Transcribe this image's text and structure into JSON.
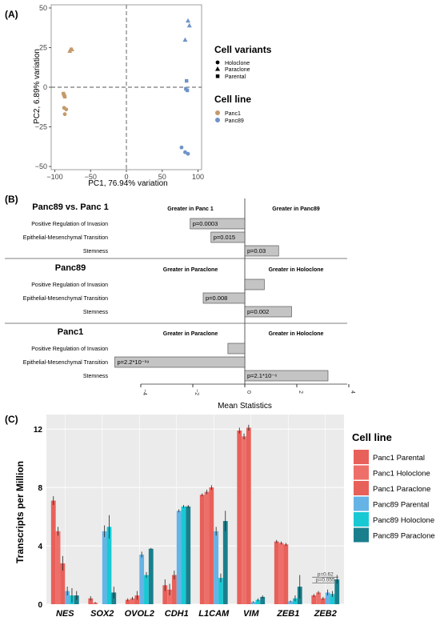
{
  "panel_labels": {
    "a": "(A)",
    "b": "(B)",
    "c": "(C)"
  },
  "colors": {
    "panc1": "#c49a6c",
    "panc89": "#6e94c8",
    "panel_c": {
      "Panc1 Parental": "#e8605a",
      "Panc1 Holoclone": "#ee6f6a",
      "Panc1 Paraclone": "#e8605a",
      "Panc89 Parental": "#66b3e6",
      "Panc89 Holoclone": "#18c9d4",
      "Panc89 Paraclone": "#1a7f8c"
    },
    "bar_grey": "#c4c4c4"
  },
  "chart_data": [
    {
      "type": "scatter",
      "panel": "A",
      "xlabel": "PC1, 76.94% variation",
      "ylabel": "PC2, 6.89% variation",
      "xlim": [
        -105,
        105
      ],
      "ylim": [
        -52,
        52
      ],
      "xticks": [
        -100,
        -50,
        0,
        50,
        100
      ],
      "yticks": [
        -50,
        -25,
        0,
        25,
        50
      ],
      "grid": false,
      "legend_position": "right",
      "legend": {
        "shape_title": "Cell variants",
        "shapes": [
          "Holoclone",
          "Paraclone",
          "Parental"
        ],
        "color_title": "Cell line",
        "colors": [
          "Panc1",
          "Panc89"
        ]
      },
      "points": [
        {
          "x": -78,
          "y": 24,
          "line": "Panc1",
          "variant": "Paraclone"
        },
        {
          "x": -76,
          "y": 24,
          "line": "Panc1",
          "variant": "Paraclone"
        },
        {
          "x": -79,
          "y": 23,
          "line": "Panc1",
          "variant": "Paraclone"
        },
        {
          "x": -88,
          "y": -4,
          "line": "Panc1",
          "variant": "Parental"
        },
        {
          "x": -86,
          "y": -6,
          "line": "Panc1",
          "variant": "Parental"
        },
        {
          "x": -87,
          "y": -5,
          "line": "Panc1",
          "variant": "Parental"
        },
        {
          "x": -87,
          "y": -13,
          "line": "Panc1",
          "variant": "Holoclone"
        },
        {
          "x": -84,
          "y": -14,
          "line": "Panc1",
          "variant": "Holoclone"
        },
        {
          "x": -86,
          "y": -17,
          "line": "Panc1",
          "variant": "Holoclone"
        },
        {
          "x": 86,
          "y": 42,
          "line": "Panc89",
          "variant": "Paraclone"
        },
        {
          "x": 88,
          "y": 39,
          "line": "Panc89",
          "variant": "Paraclone"
        },
        {
          "x": 82,
          "y": 30,
          "line": "Panc89",
          "variant": "Paraclone"
        },
        {
          "x": 84,
          "y": 4,
          "line": "Panc89",
          "variant": "Parental"
        },
        {
          "x": 83,
          "y": -1,
          "line": "Panc89",
          "variant": "Parental"
        },
        {
          "x": 85,
          "y": -2,
          "line": "Panc89",
          "variant": "Parental"
        },
        {
          "x": 77,
          "y": -38,
          "line": "Panc89",
          "variant": "Holoclone"
        },
        {
          "x": 82,
          "y": -41,
          "line": "Panc89",
          "variant": "Holoclone"
        },
        {
          "x": 86,
          "y": -42,
          "line": "Panc89",
          "variant": "Holoclone"
        }
      ]
    },
    {
      "type": "bar",
      "panel": "B",
      "xlabel": "Mean Statistics",
      "xlim": [
        -4,
        4
      ],
      "xticks": [
        -4,
        -2,
        0,
        2,
        4
      ],
      "sections": [
        {
          "title": "Panc89 vs. Panc 1",
          "left_header": "Greater in Panc 1",
          "right_header": "Greater in Panc89",
          "rows": [
            {
              "label": "Positive Regulation of Invasion",
              "value": -2.1,
              "p": "p=0.0003"
            },
            {
              "label": "Epithelial-Mesenchymal Transition",
              "value": -1.3,
              "p": "p=0.015"
            },
            {
              "label": "Stemness",
              "value": 1.3,
              "p": "p=0.03"
            }
          ]
        },
        {
          "title": "Panc89",
          "left_header": "Greater in Paraclone",
          "right_header": "Greater in Holoclone",
          "rows": [
            {
              "label": "Positive Regulation of Invasion",
              "value": 0.75,
              "p": ""
            },
            {
              "label": "Epithelial-Mesenchymal Transition",
              "value": -1.6,
              "p": "p=0.008"
            },
            {
              "label": "Stemness",
              "value": 1.8,
              "p": "p=0.002"
            }
          ]
        },
        {
          "title": "Panc1",
          "left_header": "Greater in Paraclone",
          "right_header": "Greater in Holoclone",
          "rows": [
            {
              "label": "Positive Regulation of Invasion",
              "value": -0.65,
              "p": ""
            },
            {
              "label": "Epithelial-Mesenchymal Transition",
              "value": -5.0,
              "p": "p=2.2*10⁻¹⁹"
            },
            {
              "label": "Stemness",
              "value": 3.2,
              "p": "p=2.1*10⁻⁶"
            }
          ]
        }
      ]
    },
    {
      "type": "bar",
      "panel": "C",
      "ylabel": "Transcripts per Million",
      "ylim": [
        0,
        13
      ],
      "yticks": [
        0,
        4,
        8,
        12
      ],
      "legend_position": "right",
      "legend_title": "Cell line",
      "categories": [
        "NES",
        "SOX2",
        "OVOL2",
        "CDH1",
        "L1CAM",
        "VIM",
        "ZEB1",
        "ZEB2"
      ],
      "series": [
        {
          "name": "Panc1 Parental",
          "values": [
            7.1,
            0.4,
            0.3,
            1.3,
            7.5,
            11.9,
            4.3,
            0.6
          ],
          "errors": [
            0.3,
            0.15,
            0.1,
            0.4,
            0.1,
            0.2,
            0.1,
            0.1
          ]
        },
        {
          "name": "Panc1 Holoclone",
          "values": [
            5.0,
            0.1,
            0.4,
            1.0,
            7.7,
            11.5,
            4.2,
            0.8
          ],
          "errors": [
            0.3,
            0.05,
            0.1,
            0.4,
            0.15,
            0.2,
            0.1,
            0.1
          ]
        },
        {
          "name": "Panc1 Paraclone",
          "values": [
            2.8,
            0.0,
            0.6,
            2.0,
            8.0,
            12.1,
            4.1,
            0.4
          ],
          "errors": [
            0.5,
            0.0,
            0.3,
            0.3,
            0.15,
            0.2,
            0.1,
            0.1
          ]
        },
        {
          "name": "Panc89 Parental",
          "values": [
            0.9,
            5.0,
            3.4,
            6.4,
            5.0,
            0.15,
            0.2,
            0.8
          ],
          "errors": [
            0.3,
            0.4,
            0.2,
            0.1,
            0.3,
            0.05,
            0.05,
            0.2
          ]
        },
        {
          "name": "Panc89 Holoclone",
          "values": [
            0.6,
            5.3,
            2.0,
            6.7,
            1.8,
            0.3,
            0.4,
            0.7
          ],
          "errors": [
            0.5,
            0.8,
            0.2,
            0.1,
            0.3,
            0.1,
            0.2,
            0.2
          ]
        },
        {
          "name": "Panc89 Paraclone",
          "values": [
            0.6,
            0.8,
            3.8,
            6.7,
            5.7,
            0.5,
            1.2,
            1.7
          ],
          "errors": [
            0.3,
            0.4,
            0.05,
            0.1,
            0.7,
            0.1,
            0.8,
            0.3
          ]
        }
      ],
      "annotations": [
        "p=0.62",
        "p=0.055"
      ]
    }
  ]
}
